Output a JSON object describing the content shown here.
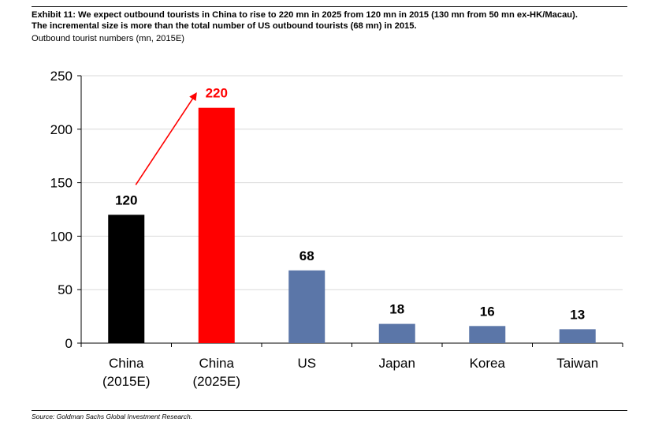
{
  "header": {
    "title_line1": "Exhibit 11: We expect outbound tourists in China to rise to 220 mn in 2025 from 120 mn in 2015 (130 mn from 50 mn ex-HK/Macau).",
    "title_line2": "The incremental size is more than the total number of US outbound tourists (68 mn) in 2015.",
    "subtitle": "Outbound tourist numbers (mn, 2015E)"
  },
  "footer": {
    "source": "Source: Goldman Sachs Global Investment Research."
  },
  "chart_data": {
    "type": "bar",
    "title": "Outbound tourist numbers (mn, 2015E)",
    "categories": [
      [
        "China",
        "(2015E)"
      ],
      [
        "China",
        "(2025E)"
      ],
      [
        "US"
      ],
      [
        "Japan"
      ],
      [
        "Korea"
      ],
      [
        "Taiwan"
      ]
    ],
    "values": [
      120,
      220,
      68,
      18,
      16,
      13
    ],
    "data_labels": [
      "120",
      "220",
      "68",
      "18",
      "16",
      "13"
    ],
    "bar_colors": [
      "#000000",
      "#ff0000",
      "#5b76a8",
      "#5b76a8",
      "#5b76a8",
      "#5b76a8"
    ],
    "data_label_colors": [
      "#000000",
      "#ff0000",
      "#000000",
      "#000000",
      "#000000",
      "#000000"
    ],
    "ylim": [
      0,
      250
    ],
    "yticks": [
      0,
      50,
      100,
      150,
      200,
      250
    ],
    "grid": true,
    "grid_color": "#d9d9d9",
    "annotation": {
      "type": "arrow",
      "from_category": 0,
      "to_category": 1,
      "color": "#ff0000"
    },
    "xlabel": "",
    "ylabel": ""
  }
}
